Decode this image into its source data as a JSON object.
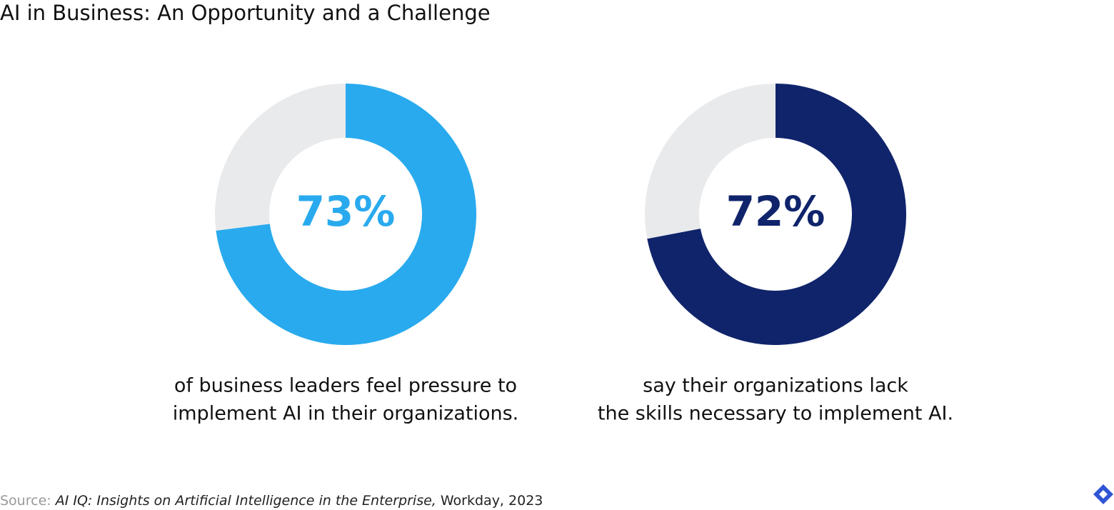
{
  "title": "AI in Business: An Opportunity and a Challenge",
  "source": {
    "prefix": "Source:",
    "title": "AI IQ: Insights on Artificial Intelligence in the Enterprise,",
    "rest": "Workday, 2023"
  },
  "chart_data": [
    {
      "type": "donut",
      "values": [
        73,
        27
      ],
      "value_labels": [
        "73%",
        null
      ],
      "colors": [
        "#29aaee",
        "#e9eaec"
      ],
      "caption": [
        "of business leaders feel pressure to",
        "implement AI in their organizations."
      ]
    },
    {
      "type": "donut",
      "values": [
        72,
        28
      ],
      "value_labels": [
        "72%",
        null
      ],
      "colors": [
        "#10246b",
        "#e9eaec"
      ],
      "caption": [
        "say their organizations lack",
        "the skills necessary to implement AI."
      ]
    }
  ]
}
